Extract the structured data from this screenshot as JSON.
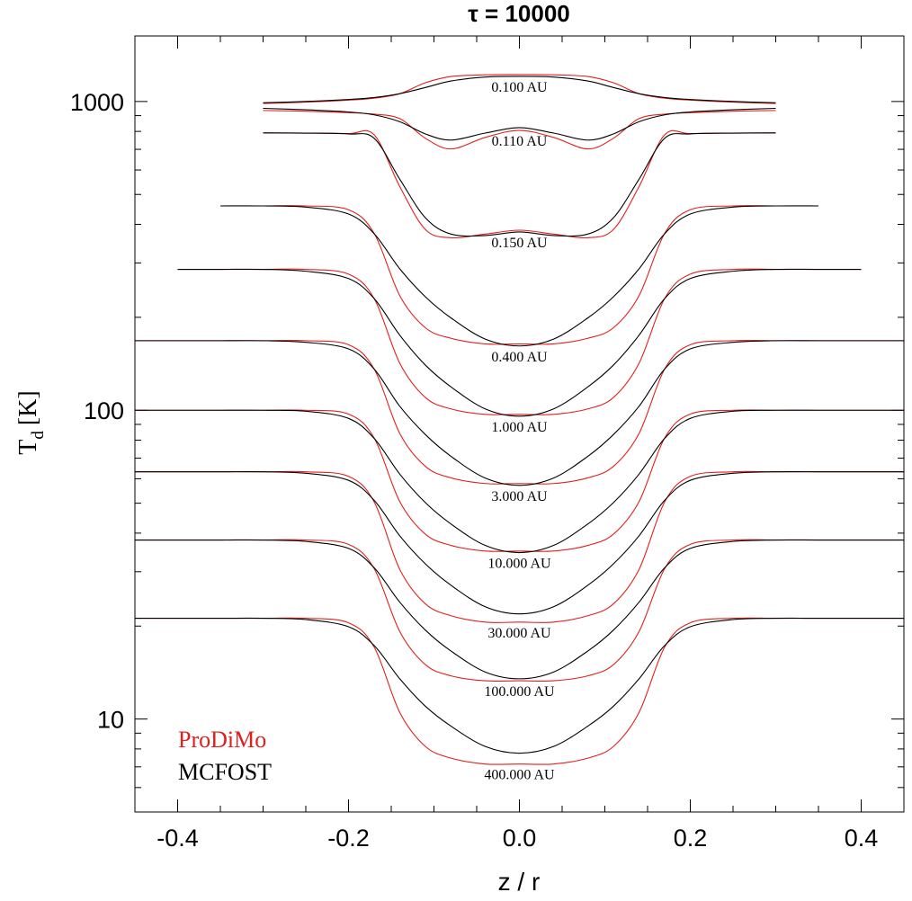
{
  "chart_data": {
    "type": "line",
    "title": "τ = 10000",
    "xlabel": "z / r",
    "ylabel": {
      "symbol": "T",
      "sub": "d",
      "unit": "[K]"
    },
    "xlim": [
      -0.45,
      0.45
    ],
    "ylim": [
      5,
      1630
    ],
    "yscale": "log",
    "xticks": [
      -0.4,
      -0.2,
      {
        "value": 0,
        "label": "0.0"
      },
      0.2,
      0.4
    ],
    "xminorticks": [
      -0.35,
      -0.3,
      -0.25,
      -0.15,
      -0.1,
      -0.05,
      0.05,
      0.1,
      0.15,
      0.25,
      0.3,
      0.35
    ],
    "yticks": [
      10,
      100,
      1000
    ],
    "yminorticks": [
      6,
      7,
      8,
      9,
      20,
      30,
      40,
      50,
      60,
      70,
      80,
      90,
      200,
      300,
      400,
      500,
      600,
      700,
      800,
      900
    ],
    "legend": "lower left",
    "radii": [
      "0.100 AU",
      "0.110 AU",
      "0.150 AU",
      "0.400 AU",
      "1.000 AU",
      "3.000 AU",
      "10.000 AU",
      "30.000 AU",
      "100.000 AU",
      "400.000 AU"
    ],
    "x": [
      -0.45,
      -0.4,
      -0.35,
      -0.3,
      -0.25,
      -0.2,
      -0.17,
      -0.14,
      -0.11,
      -0.08,
      -0.04,
      0,
      0.04,
      0.08,
      0.11,
      0.14,
      0.17,
      0.2,
      0.25,
      0.3,
      0.35,
      0.4,
      0.45
    ],
    "series": [
      {
        "name": "ProDiMo",
        "color": "#e0201c",
        "values": [
          [
            null,
            null,
            null,
            985,
            995,
            1010,
            1025,
            1060,
            1150,
            1205,
            1220,
            1222,
            1220,
            1205,
            1150,
            1060,
            1025,
            1010,
            995,
            985,
            null,
            null,
            null
          ],
          [
            null,
            null,
            null,
            935,
            930,
            920,
            910,
            880,
            760,
            702,
            765,
            806,
            765,
            702,
            760,
            880,
            910,
            920,
            930,
            935,
            null,
            null,
            null
          ],
          [
            null,
            null,
            null,
            791,
            790,
            787,
            780,
            530,
            385,
            362,
            372,
            383,
            372,
            362,
            385,
            530,
            780,
            787,
            790,
            791,
            null,
            null,
            null
          ],
          [
            null,
            null,
            459,
            459,
            459,
            446,
            374,
            235,
            185,
            171,
            164,
            164,
            164,
            171,
            185,
            235,
            374,
            446,
            459,
            459,
            459,
            null,
            null
          ],
          [
            null,
            286,
            286,
            286,
            286,
            276,
            230,
            142,
            110,
            101,
            97,
            97,
            97,
            101,
            110,
            142,
            230,
            276,
            286,
            286,
            286,
            286,
            null
          ],
          [
            168,
            168,
            168,
            168,
            168,
            163,
            136,
            84.1,
            65.8,
            60.4,
            57.9,
            57.9,
            57.9,
            60.4,
            65.8,
            84.1,
            136,
            163,
            168,
            168,
            168,
            168,
            168
          ],
          [
            100,
            100,
            100,
            100,
            100,
            97.2,
            81.3,
            50.6,
            39.7,
            36.5,
            35,
            35,
            35,
            36.5,
            39.7,
            50.6,
            81.3,
            97.2,
            100,
            100,
            100,
            100,
            100
          ],
          [
            63.2,
            63.2,
            63.2,
            63.2,
            63.2,
            61.1,
            50.5,
            30.5,
            23.6,
            21.6,
            20.6,
            20.6,
            20.6,
            21.6,
            23.6,
            30.5,
            50.5,
            61.1,
            63.2,
            63.2,
            63.2,
            63.2,
            63.2
          ],
          [
            38,
            38,
            38,
            38,
            38,
            36.8,
            30.7,
            19.2,
            15,
            13.8,
            13.3,
            13.3,
            13.3,
            13.8,
            15,
            19.2,
            30.7,
            36.8,
            38,
            38,
            38,
            38,
            38
          ],
          [
            21.2,
            21.2,
            21.2,
            21.2,
            21.2,
            20.5,
            17.1,
            10.5,
            8.15,
            7.47,
            7.15,
            7.15,
            7.15,
            7.47,
            8.15,
            10.5,
            17.1,
            20.5,
            21.2,
            21.2,
            21.2,
            21.2,
            21.2
          ]
        ]
      },
      {
        "name": "MCFOST",
        "color": "#000000",
        "values": [
          [
            null,
            null,
            null,
            990,
            1000,
            1015,
            1030,
            1060,
            1110,
            1165,
            1200,
            1206,
            1200,
            1165,
            1110,
            1060,
            1030,
            1015,
            1000,
            990,
            null,
            null,
            null
          ],
          [
            null,
            null,
            null,
            950,
            940,
            925,
            905,
            860,
            785,
            750,
            790,
            823,
            790,
            750,
            785,
            860,
            905,
            925,
            940,
            950,
            null,
            null,
            null
          ],
          [
            null,
            null,
            null,
            791,
            790,
            785,
            760,
            560,
            420,
            372,
            368,
            378,
            368,
            372,
            420,
            560,
            760,
            785,
            790,
            791,
            null,
            null,
            null
          ],
          [
            null,
            null,
            459,
            459,
            455,
            432,
            373,
            287,
            233,
            199,
            170,
            161.5,
            170,
            199,
            233,
            287,
            373,
            432,
            455,
            459,
            459,
            null,
            null
          ],
          [
            null,
            286,
            286,
            286,
            282,
            267,
            230,
            175,
            140,
            119,
            101,
            95.7,
            101,
            119,
            140,
            175,
            230,
            267,
            282,
            286,
            286,
            286,
            null
          ],
          [
            168,
            168,
            168,
            168,
            166,
            158,
            136,
            103,
            83.4,
            70.9,
            60.3,
            57.1,
            60.3,
            70.9,
            83.4,
            103,
            136,
            158,
            166,
            168,
            168,
            168,
            168
          ],
          [
            100,
            100,
            100,
            100,
            99.3,
            94.1,
            81.1,
            62.1,
            50.2,
            42.8,
            36.5,
            34.6,
            36.5,
            42.8,
            50.2,
            62.1,
            81.1,
            94.1,
            99.3,
            100,
            100,
            100,
            100
          ],
          [
            63.2,
            63.2,
            63.2,
            63.2,
            62.5,
            59.3,
            51.1,
            39.2,
            31.8,
            27.1,
            23.1,
            21.9,
            23.1,
            27.1,
            31.8,
            39.2,
            51.1,
            59.3,
            62.5,
            63.2,
            63.2,
            63.2,
            63.2
          ],
          [
            38,
            38,
            38,
            38,
            37.6,
            35.7,
            30.9,
            23.9,
            19.4,
            16.6,
            14.2,
            13.5,
            14.2,
            16.6,
            19.4,
            23.9,
            30.9,
            35.7,
            37.6,
            38,
            38,
            38,
            38
          ],
          [
            21.2,
            21.2,
            21.2,
            21.2,
            21,
            19.9,
            17.3,
            13.5,
            11,
            9.48,
            8.15,
            7.75,
            8.15,
            9.48,
            11,
            13.5,
            17.3,
            19.9,
            21,
            21.2,
            21.2,
            21.2,
            21.2
          ]
        ]
      }
    ]
  }
}
